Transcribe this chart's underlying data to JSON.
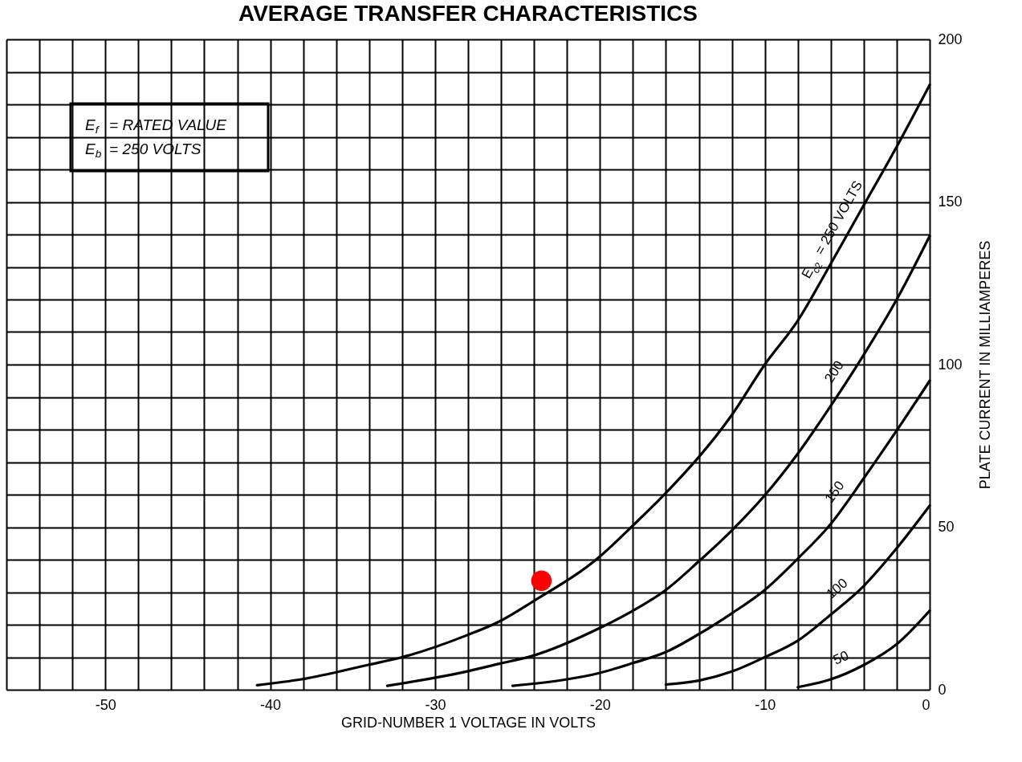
{
  "chart_data": {
    "type": "line",
    "title": "AVERAGE TRANSFER CHARACTERISTICS",
    "xlabel": "GRID-NUMBER 1 VOLTAGE IN VOLTS",
    "ylabel": "PLATE CURRENT IN MILLIAMPERES",
    "annotations": [
      "E$_{f}$ = RATED VALUE",
      "E$_{b}$ = 250 VOLTS"
    ],
    "xlim": [
      -56,
      0
    ],
    "ylim": [
      0,
      200
    ],
    "xticks": [
      {
        "value": -56,
        "label": null
      },
      {
        "value": -54,
        "label": null
      },
      {
        "value": -52,
        "label": null
      },
      -50,
      {
        "value": -48,
        "label": null
      },
      {
        "value": -46,
        "label": null
      },
      {
        "value": -44,
        "label": null
      },
      {
        "value": -42,
        "label": null
      },
      -40,
      {
        "value": -38,
        "label": null
      },
      {
        "value": -36,
        "label": null
      },
      {
        "value": -34,
        "label": null
      },
      {
        "value": -32,
        "label": null
      },
      -30,
      {
        "value": -28,
        "label": null
      },
      {
        "value": -26,
        "label": null
      },
      {
        "value": -24,
        "label": null
      },
      {
        "value": -22,
        "label": null
      },
      -20,
      {
        "value": -18,
        "label": null
      },
      {
        "value": -16,
        "label": null
      },
      {
        "value": -14,
        "label": null
      },
      {
        "value": -12,
        "label": null
      },
      -10,
      {
        "value": -8,
        "label": null
      },
      {
        "value": -6,
        "label": null
      },
      {
        "value": -4,
        "label": null
      },
      {
        "value": -2,
        "label": null
      },
      0
    ],
    "yticks": [
      0,
      {
        "value": 10,
        "label": null
      },
      {
        "value": 20,
        "label": null
      },
      {
        "value": 30,
        "label": null
      },
      {
        "value": 40,
        "label": null
      },
      50,
      {
        "value": 60,
        "label": null
      },
      {
        "value": 70,
        "label": null
      },
      {
        "value": 80,
        "label": null
      },
      {
        "value": 90,
        "label": null
      },
      100,
      {
        "value": 110,
        "label": null
      },
      {
        "value": 120,
        "label": null
      },
      {
        "value": 130,
        "label": null
      },
      {
        "value": 140,
        "label": null
      },
      150,
      {
        "value": 160,
        "label": null
      },
      {
        "value": 170,
        "label": null
      },
      {
        "value": 180,
        "label": null
      },
      {
        "value": 190,
        "label": null
      },
      200
    ],
    "grid": true,
    "marker": "none",
    "line_style": "solid",
    "series": [
      {
        "name": "E$_{c2}$ = 250 VOLTS",
        "color": "#000000",
        "x": [
          -40.8,
          -38.1,
          -34.1,
          -32,
          -28.1,
          -26.1,
          -24.1,
          -20,
          -18,
          -16,
          -12,
          -10,
          -8,
          -6,
          -4,
          -2,
          0
        ],
        "values": [
          1.4,
          3.2,
          7.6,
          10,
          16.7,
          21,
          27,
          41,
          50.5,
          60.5,
          84.5,
          100,
          113.5,
          131,
          149,
          167,
          186
        ]
      },
      {
        "name": "200",
        "color": "#000000",
        "x": [
          -32.9,
          -30.1,
          -28.1,
          -26.1,
          -24.1,
          -20,
          -18,
          -16,
          -14,
          -12,
          -10,
          -8,
          -6,
          -4,
          -2,
          0
        ],
        "values": [
          1.2,
          3.6,
          5.6,
          8,
          10.4,
          19,
          24.3,
          30.7,
          39.5,
          49,
          59.8,
          72.6,
          87.3,
          103,
          120,
          139.5
        ]
      },
      {
        "name": "150",
        "color": "#000000",
        "x": [
          -25.3,
          -22,
          -20,
          -18,
          -16,
          -14,
          -12,
          -10,
          -8,
          -6,
          -4,
          -2,
          0
        ],
        "values": [
          1.2,
          3.2,
          5.2,
          8.2,
          11.6,
          17.1,
          23.5,
          30.7,
          40.3,
          51,
          65,
          79.7,
          95
        ]
      },
      {
        "name": "100",
        "color": "#000000",
        "x": [
          -16,
          -14,
          -12,
          -10,
          -8,
          -6,
          -4,
          -2,
          0
        ],
        "values": [
          1.6,
          2.8,
          5.6,
          10,
          15.1,
          23.1,
          31.9,
          43.5,
          56.6
        ]
      },
      {
        "name": "50",
        "color": "#000000",
        "x": [
          -8,
          -6,
          -4,
          -2,
          0
        ],
        "values": [
          0.8,
          3.2,
          7.6,
          14,
          24.3
        ]
      },
      {
        "type": "scatter",
        "marker": "circle",
        "color": "#ff0000",
        "x": [
          -23.55
        ],
        "values": [
          33.5
        ]
      }
    ]
  }
}
